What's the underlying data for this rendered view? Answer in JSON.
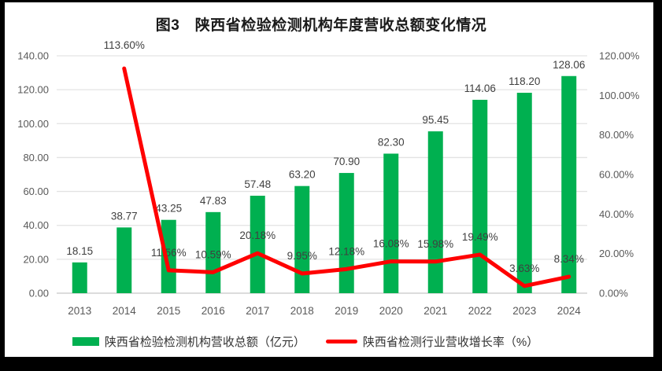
{
  "title": "图3　陕西省检验检测机构年度营收总额变化情况",
  "chart_data": {
    "type": "combo",
    "title": "图3　陕西省检验检测机构年度营收总额变化情况",
    "categories": [
      "2013",
      "2014",
      "2015",
      "2016",
      "2017",
      "2018",
      "2019",
      "2020",
      "2021",
      "2022",
      "2023",
      "2024"
    ],
    "series": [
      {
        "name": "陕西省检验检测机构营收总额（亿元）",
        "type": "bar",
        "axis": "left",
        "color": "#00B050",
        "values": [
          18.15,
          38.77,
          43.25,
          47.83,
          57.48,
          63.2,
          70.9,
          82.3,
          95.45,
          114.06,
          118.2,
          128.06
        ],
        "data_labels": [
          "18.15",
          "38.77",
          "43.25",
          "47.83",
          "57.48",
          "63.20",
          "70.90",
          "82.30",
          "95.45",
          "114.06",
          "118.20",
          "128.06"
        ]
      },
      {
        "name": "陕西省检测行业营收增长率（%）",
        "type": "line",
        "axis": "right",
        "color": "#FF0000",
        "values": [
          null,
          113.6,
          11.56,
          10.59,
          20.18,
          9.95,
          12.18,
          16.08,
          15.98,
          19.49,
          3.63,
          8.34
        ],
        "data_labels": [
          null,
          "113.60%",
          "11.56%",
          "10.59%",
          "20.18%",
          "9.95%",
          "12.18%",
          "16.08%",
          "15.98%",
          "19.49%",
          "3.63%",
          "8.34%"
        ]
      }
    ],
    "left_axis": {
      "min": 0,
      "max": 140,
      "step": 20,
      "tick_labels": [
        "0.00",
        "20.00",
        "40.00",
        "60.00",
        "80.00",
        "100.00",
        "120.00",
        "140.00"
      ]
    },
    "right_axis": {
      "min": 0,
      "max": 120,
      "step": 20,
      "tick_labels": [
        "0.00%",
        "20.00%",
        "40.00%",
        "60.00%",
        "80.00%",
        "100.00%",
        "120.00%"
      ]
    },
    "grid": true,
    "legend_position": "bottom",
    "colors": {
      "gridline": "#E3E3E3",
      "axis_line": "#C6C6C6",
      "tick_text": "#595959",
      "data_label_text": "#3F3F3F"
    }
  },
  "legend": {
    "items": [
      {
        "label": "陕西省检验检测机构营收总额（亿元）",
        "swatch": "bar",
        "color": "#00B050"
      },
      {
        "label": "陕西省检测行业营收增长率（%）",
        "swatch": "line",
        "color": "#FF0000"
      }
    ]
  }
}
